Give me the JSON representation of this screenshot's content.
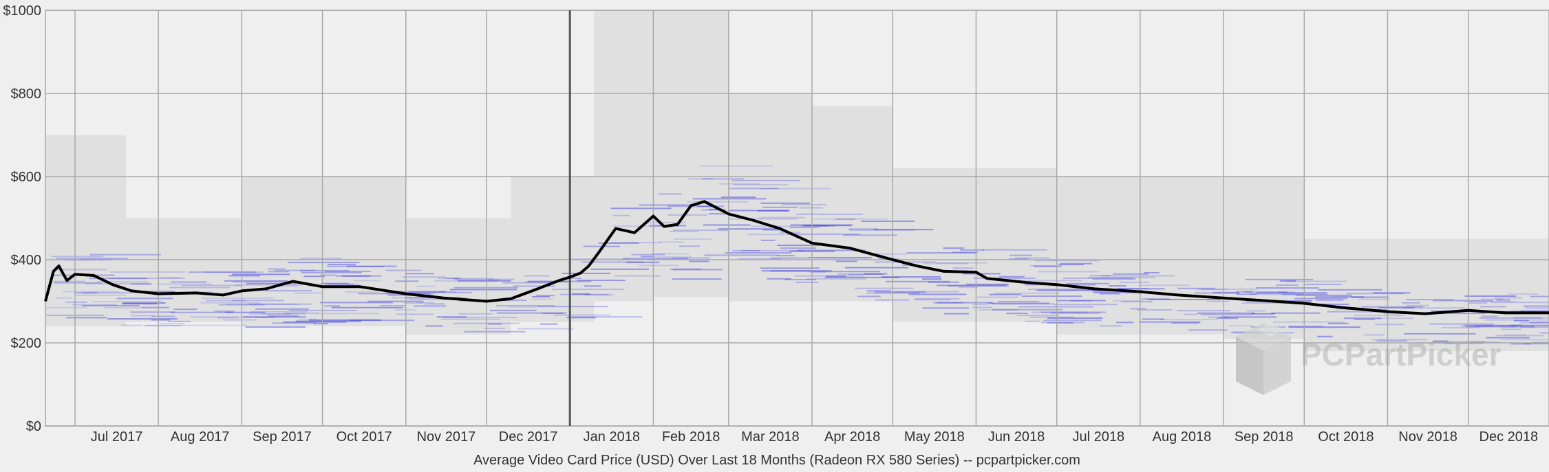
{
  "chart_data": {
    "type": "line",
    "title": "",
    "xlabel": "Average Video Card Price (USD) Over Last 18 Months (Radeon RX 580 Series) -- pcpartpicker.com",
    "ylabel": "",
    "ylim": [
      0,
      1000
    ],
    "y_ticks": [
      {
        "value": 0,
        "label": "$0"
      },
      {
        "value": 200,
        "label": "$200"
      },
      {
        "value": 400,
        "label": "$400"
      },
      {
        "value": 600,
        "label": "$600"
      },
      {
        "value": 800,
        "label": "$800"
      },
      {
        "value": 1000,
        "label": "$1000"
      }
    ],
    "x_range": [
      "2017-06-20",
      "2018-12-31"
    ],
    "month_labels": [
      {
        "date": "2017-07-01",
        "label": "Jul 2017"
      },
      {
        "date": "2017-08-01",
        "label": "Aug 2017"
      },
      {
        "date": "2017-09-01",
        "label": "Sep 2017"
      },
      {
        "date": "2017-10-01",
        "label": "Oct 2017"
      },
      {
        "date": "2017-11-01",
        "label": "Nov 2017"
      },
      {
        "date": "2017-12-01",
        "label": "Dec 2017"
      },
      {
        "date": "2018-01-01",
        "label": "Jan 2018"
      },
      {
        "date": "2018-02-01",
        "label": "Feb 2018"
      },
      {
        "date": "2018-03-01",
        "label": "Mar 2018"
      },
      {
        "date": "2018-04-01",
        "label": "Apr 2018"
      },
      {
        "date": "2018-05-01",
        "label": "May 2018"
      },
      {
        "date": "2018-06-01",
        "label": "Jun 2018"
      },
      {
        "date": "2018-07-01",
        "label": "Jul 2018"
      },
      {
        "date": "2018-08-01",
        "label": "Aug 2018"
      },
      {
        "date": "2018-09-01",
        "label": "Sep 2018"
      },
      {
        "date": "2018-10-01",
        "label": "Oct 2018"
      },
      {
        "date": "2018-11-01",
        "label": "Nov 2018"
      },
      {
        "date": "2018-12-01",
        "label": "Dec 2018"
      }
    ],
    "year_divider": "2018-01-01",
    "grid": true,
    "legend": "none",
    "colors": {
      "average_line": "#000000",
      "price_ticks": "#3a3ae0",
      "range_band": "#e0e0e0",
      "grid": "#a8a8a8",
      "background": "#efefef"
    },
    "series": [
      {
        "name": "",
        "points": [
          [
            "2017-06-20",
            300
          ],
          [
            "2017-06-23",
            372
          ],
          [
            "2017-06-25",
            385
          ],
          [
            "2017-06-28",
            350
          ],
          [
            "2017-07-01",
            365
          ],
          [
            "2017-07-08",
            362
          ],
          [
            "2017-07-15",
            340
          ],
          [
            "2017-07-22",
            325
          ],
          [
            "2017-08-01",
            318
          ],
          [
            "2017-08-15",
            320
          ],
          [
            "2017-08-25",
            315
          ],
          [
            "2017-09-01",
            325
          ],
          [
            "2017-09-10",
            330
          ],
          [
            "2017-09-20",
            348
          ],
          [
            "2017-10-01",
            335
          ],
          [
            "2017-10-15",
            335
          ],
          [
            "2017-11-01",
            318
          ],
          [
            "2017-11-15",
            308
          ],
          [
            "2017-12-01",
            300
          ],
          [
            "2017-12-10",
            306
          ],
          [
            "2017-12-20",
            330
          ],
          [
            "2017-12-28",
            350
          ],
          [
            "2018-01-01",
            358
          ],
          [
            "2018-01-05",
            368
          ],
          [
            "2018-01-08",
            385
          ],
          [
            "2018-01-12",
            420
          ],
          [
            "2018-01-18",
            475
          ],
          [
            "2018-01-25",
            465
          ],
          [
            "2018-02-01",
            505
          ],
          [
            "2018-02-05",
            480
          ],
          [
            "2018-02-10",
            485
          ],
          [
            "2018-02-15",
            530
          ],
          [
            "2018-02-20",
            540
          ],
          [
            "2018-03-01",
            510
          ],
          [
            "2018-03-10",
            495
          ],
          [
            "2018-03-20",
            475
          ],
          [
            "2018-04-01",
            440
          ],
          [
            "2018-04-15",
            428
          ],
          [
            "2018-05-01",
            400
          ],
          [
            "2018-05-10",
            385
          ],
          [
            "2018-05-20",
            372
          ],
          [
            "2018-06-01",
            370
          ],
          [
            "2018-06-05",
            355
          ],
          [
            "2018-06-20",
            345
          ],
          [
            "2018-07-01",
            340
          ],
          [
            "2018-07-15",
            330
          ],
          [
            "2018-08-01",
            323
          ],
          [
            "2018-08-15",
            315
          ],
          [
            "2018-09-01",
            308
          ],
          [
            "2018-09-15",
            302
          ],
          [
            "2018-10-01",
            295
          ],
          [
            "2018-10-15",
            285
          ],
          [
            "2018-11-01",
            275
          ],
          [
            "2018-11-15",
            270
          ],
          [
            "2018-12-01",
            278
          ],
          [
            "2018-12-15",
            272
          ],
          [
            "2018-12-31",
            272
          ]
        ]
      }
    ],
    "price_range_bands": [
      {
        "from": "2017-06-20",
        "to": "2017-07-20",
        "low": 240,
        "high": 700
      },
      {
        "from": "2017-07-20",
        "to": "2017-09-01",
        "low": 250,
        "high": 500
      },
      {
        "from": "2017-09-01",
        "to": "2017-11-01",
        "low": 240,
        "high": 600
      },
      {
        "from": "2017-11-01",
        "to": "2017-12-10",
        "low": 220,
        "high": 500
      },
      {
        "from": "2017-12-10",
        "to": "2018-01-10",
        "low": 250,
        "high": 600
      },
      {
        "from": "2018-01-10",
        "to": "2018-02-01",
        "low": 300,
        "high": 1000
      },
      {
        "from": "2018-02-01",
        "to": "2018-03-01",
        "low": 310,
        "high": 1000
      },
      {
        "from": "2018-03-01",
        "to": "2018-04-01",
        "low": 300,
        "high": 800
      },
      {
        "from": "2018-04-01",
        "to": "2018-05-01",
        "low": 300,
        "high": 770
      },
      {
        "from": "2018-05-01",
        "to": "2018-07-01",
        "low": 250,
        "high": 620
      },
      {
        "from": "2018-07-01",
        "to": "2018-09-01",
        "low": 220,
        "high": 600
      },
      {
        "from": "2018-09-01",
        "to": "2018-10-01",
        "low": 210,
        "high": 600
      },
      {
        "from": "2018-10-01",
        "to": "2018-12-31",
        "low": 180,
        "high": 450
      }
    ],
    "watermark": "PCPartPicker"
  }
}
